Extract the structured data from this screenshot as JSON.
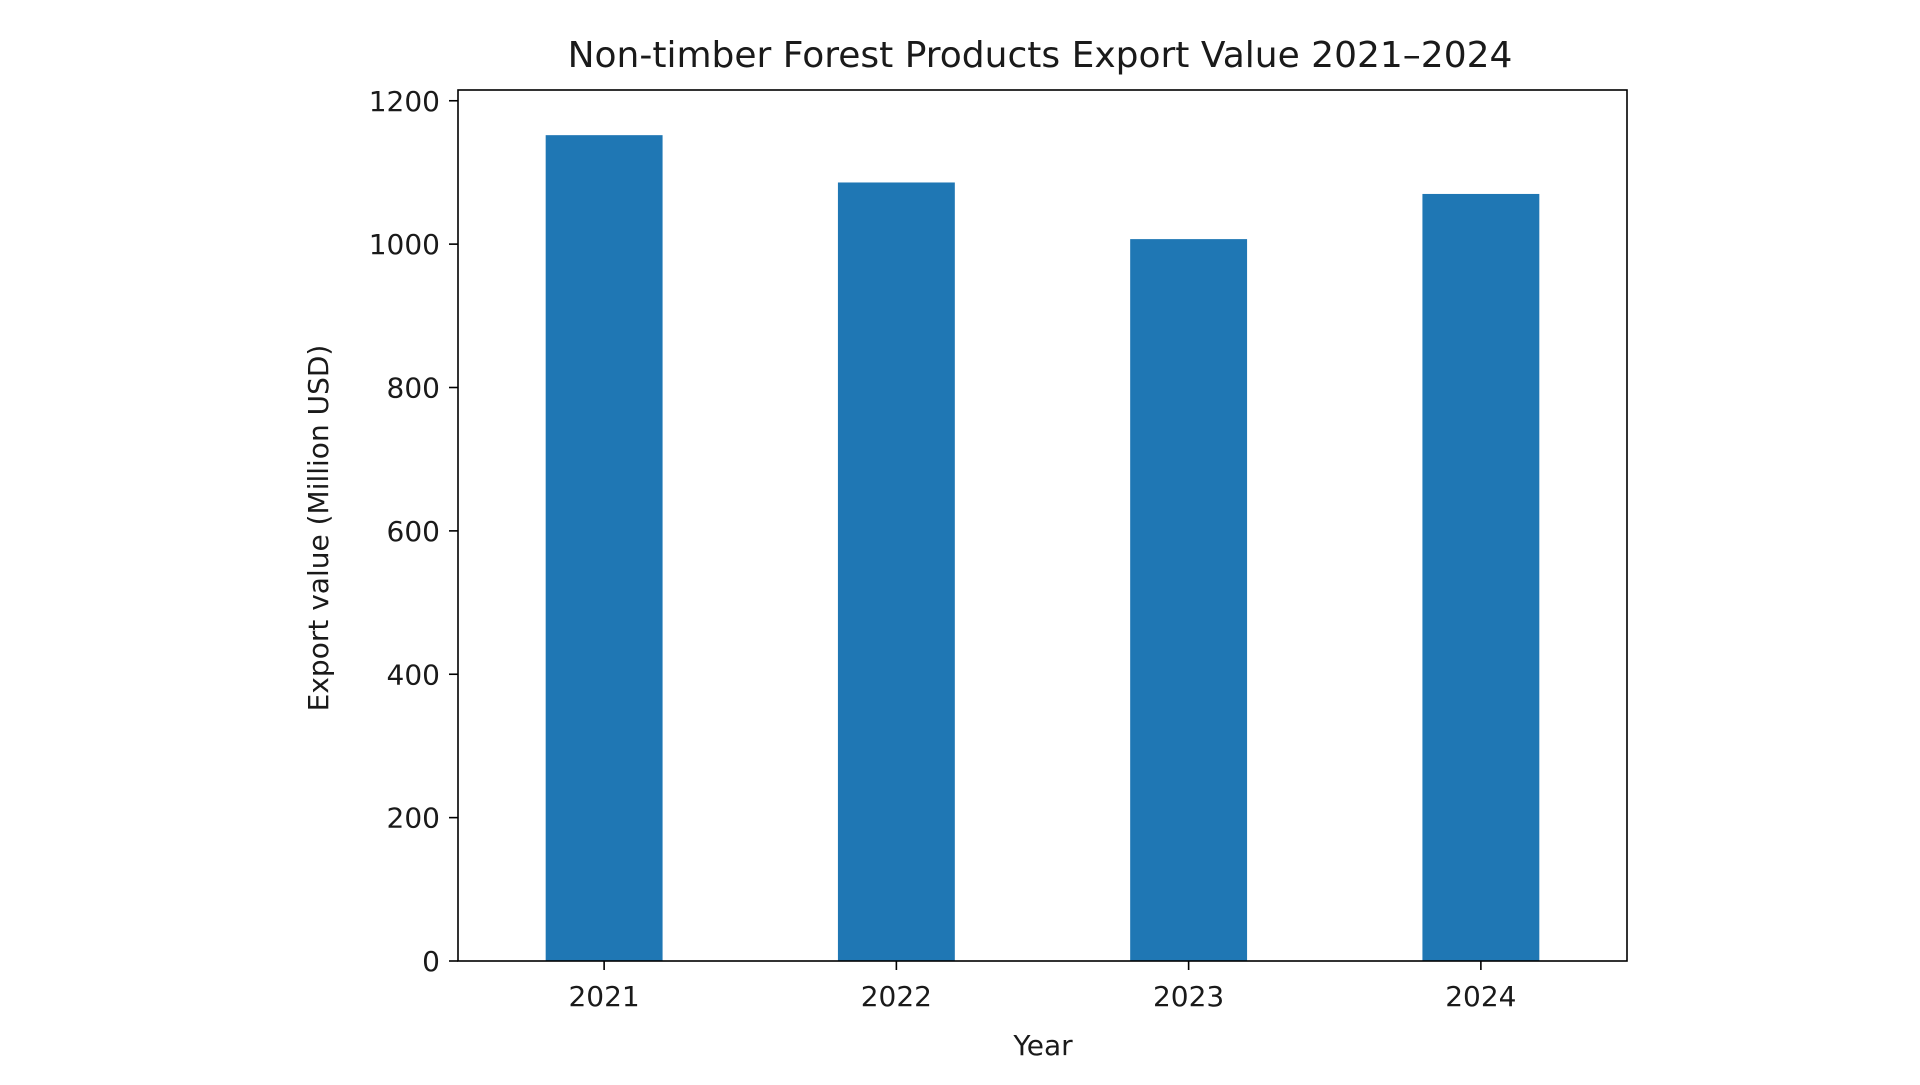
{
  "chart_data": {
    "type": "bar",
    "title": "Non-timber Forest Products Export Value 2021–2024",
    "xlabel": "Year",
    "ylabel": "Export value (Million USD)",
    "categories": [
      "2021",
      "2022",
      "2023",
      "2024"
    ],
    "values": [
      1152,
      1086,
      1007,
      1070
    ],
    "ylim": [
      0,
      1215
    ],
    "yticks": [
      0,
      200,
      400,
      600,
      800,
      1000,
      1200
    ],
    "ytick_labels": [
      "0",
      "200",
      "400",
      "600",
      "800",
      "1000",
      "1200"
    ],
    "grid": false,
    "bar_color": "#1f77b4"
  }
}
